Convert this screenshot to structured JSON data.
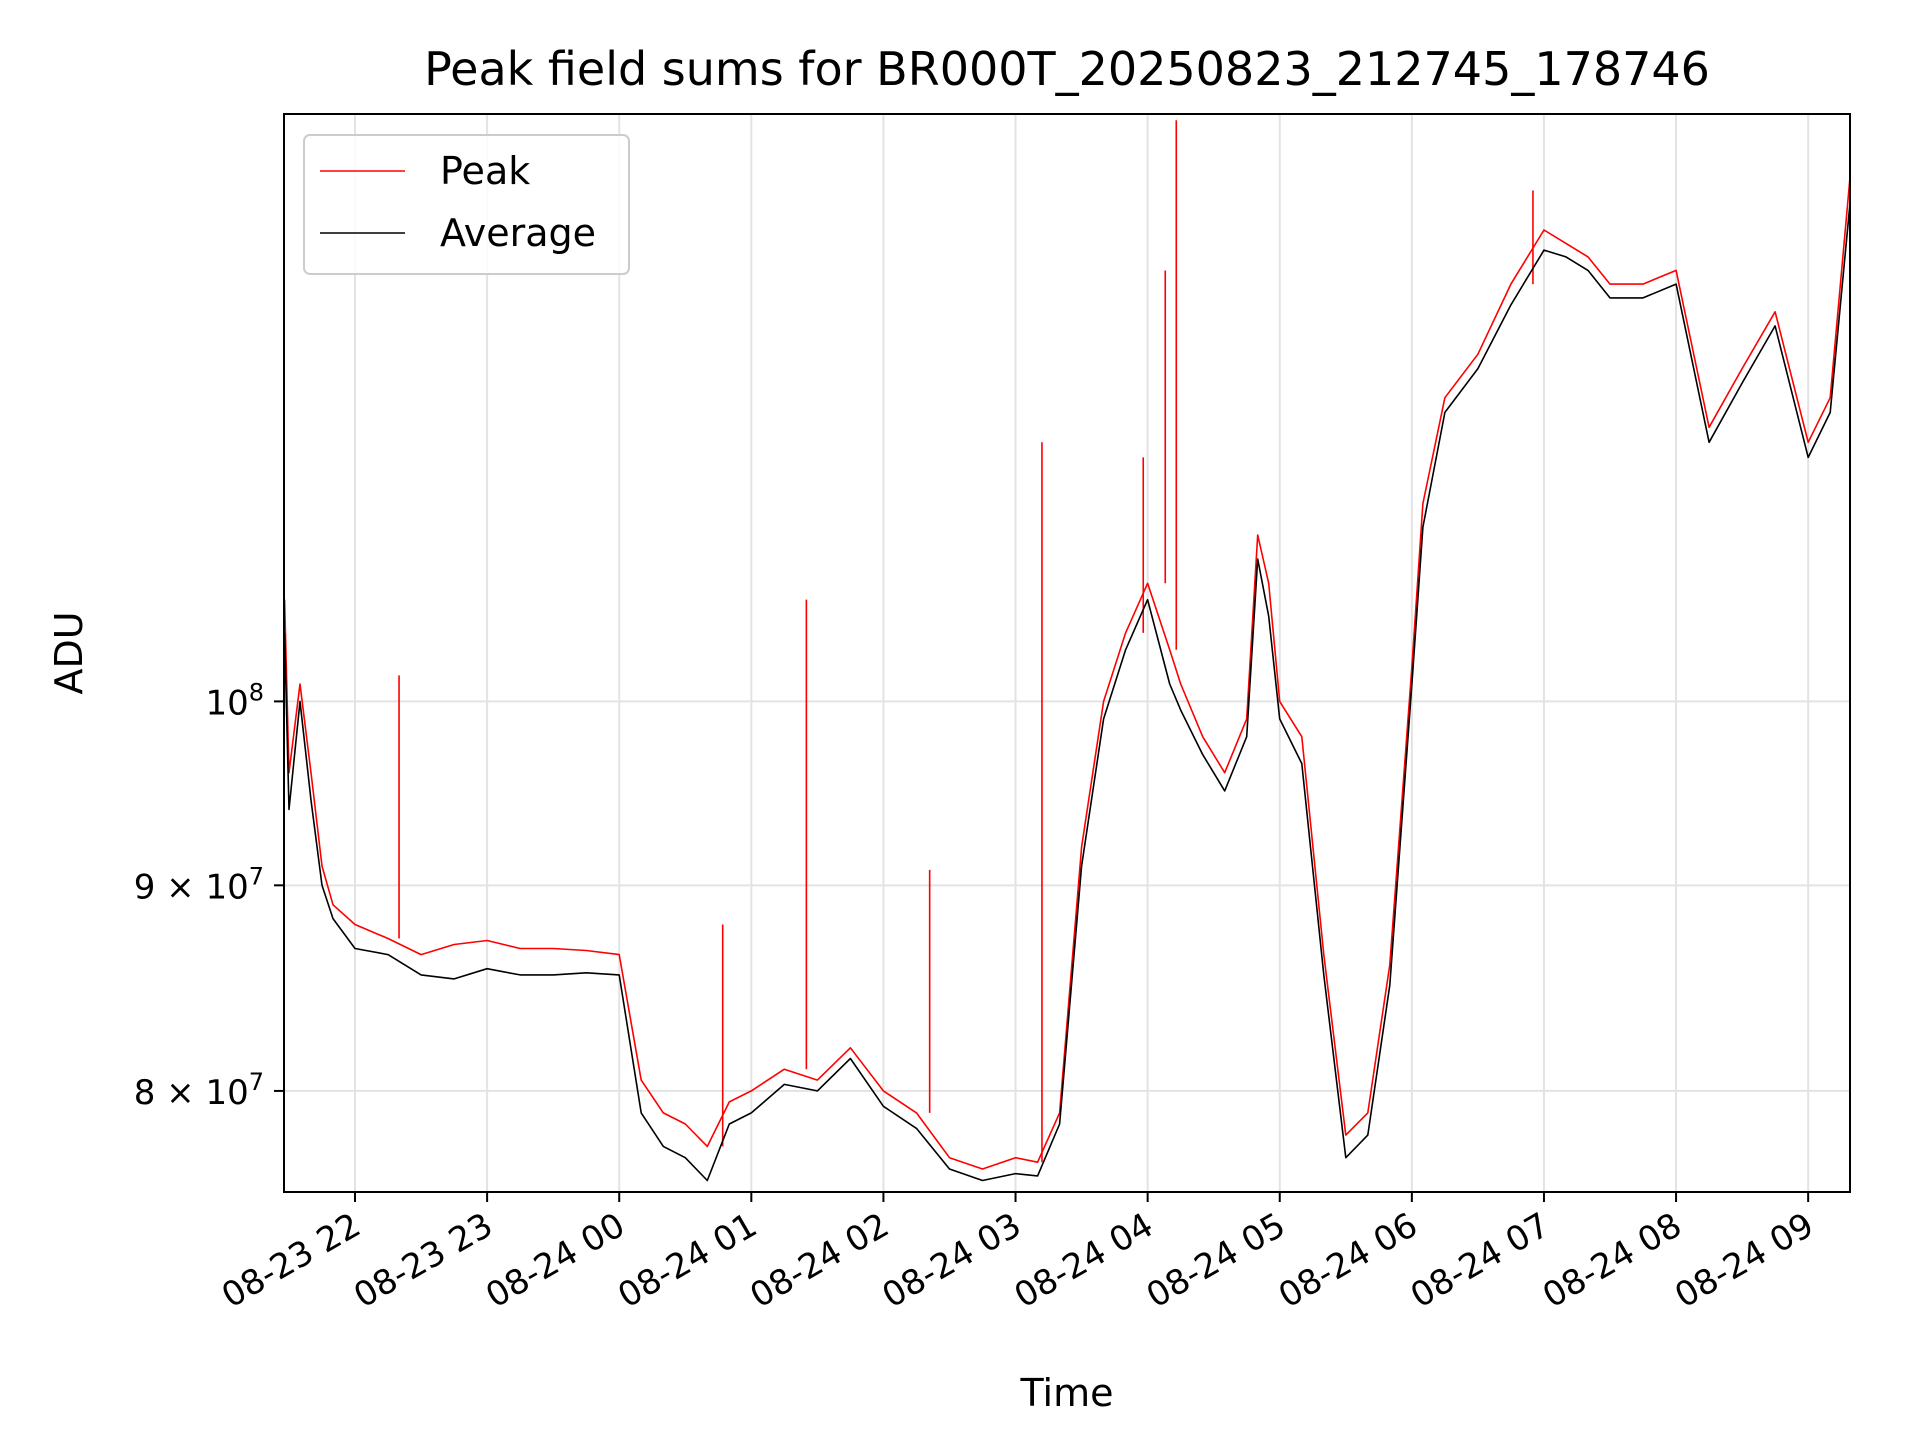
{
  "chart_data": {
    "type": "line",
    "title": "Peak field sums for BR000T_20250823_212745_178746",
    "xlabel": "Time",
    "ylabel": "ADU",
    "yscale": "log",
    "xlim": [
      "2025-08-23 21:27:45",
      "2025-08-24 09:19:00"
    ],
    "ylim": [
      75500000,
      140000000
    ],
    "grid": true,
    "legend_position": "upper left",
    "x_ticks": [
      {
        "label": "08-23 22",
        "value": "2025-08-23 22:00"
      },
      {
        "label": "08-23 23",
        "value": "2025-08-23 23:00"
      },
      {
        "label": "08-24 00",
        "value": "2025-08-24 00:00"
      },
      {
        "label": "08-24 01",
        "value": "2025-08-24 01:00"
      },
      {
        "label": "08-24 02",
        "value": "2025-08-24 02:00"
      },
      {
        "label": "08-24 03",
        "value": "2025-08-24 03:00"
      },
      {
        "label": "08-24 04",
        "value": "2025-08-24 04:00"
      },
      {
        "label": "08-24 05",
        "value": "2025-08-24 05:00"
      },
      {
        "label": "08-24 06",
        "value": "2025-08-24 06:00"
      },
      {
        "label": "08-24 07",
        "value": "2025-08-24 07:00"
      },
      {
        "label": "08-24 08",
        "value": "2025-08-24 08:00"
      },
      {
        "label": "08-24 09",
        "value": "2025-08-24 09:00"
      }
    ],
    "y_ticks": [
      {
        "base": "8",
        "exp": "7",
        "value": 80000000
      },
      {
        "base": "9",
        "exp": "7",
        "value": 90000000
      },
      {
        "base": "",
        "exp": "8",
        "value": 100000000
      }
    ],
    "series": [
      {
        "name": "Peak",
        "color": "#ff0000",
        "x": [
          "2025-08-23 21:28",
          "2025-08-23 21:30",
          "2025-08-23 21:35",
          "2025-08-23 21:40",
          "2025-08-23 21:45",
          "2025-08-23 21:50",
          "2025-08-23 22:00",
          "2025-08-23 22:15",
          "2025-08-23 22:30",
          "2025-08-23 22:45",
          "2025-08-23 23:00",
          "2025-08-23 23:15",
          "2025-08-23 23:30",
          "2025-08-23 23:45",
          "2025-08-24 00:00",
          "2025-08-24 00:10",
          "2025-08-24 00:20",
          "2025-08-24 00:30",
          "2025-08-24 00:40",
          "2025-08-24 00:50",
          "2025-08-24 01:00",
          "2025-08-24 01:15",
          "2025-08-24 01:30",
          "2025-08-24 01:45",
          "2025-08-24 02:00",
          "2025-08-24 02:15",
          "2025-08-24 02:30",
          "2025-08-24 02:45",
          "2025-08-24 03:00",
          "2025-08-24 03:10",
          "2025-08-24 03:20",
          "2025-08-24 03:30",
          "2025-08-24 03:40",
          "2025-08-24 03:50",
          "2025-08-24 04:00",
          "2025-08-24 04:10",
          "2025-08-24 04:15",
          "2025-08-24 04:25",
          "2025-08-24 04:35",
          "2025-08-24 04:45",
          "2025-08-24 04:50",
          "2025-08-24 04:55",
          "2025-08-24 05:00",
          "2025-08-24 05:10",
          "2025-08-24 05:20",
          "2025-08-24 05:30",
          "2025-08-24 05:40",
          "2025-08-24 05:50",
          "2025-08-24 06:00",
          "2025-08-24 06:05",
          "2025-08-24 06:15",
          "2025-08-24 06:30",
          "2025-08-24 06:45",
          "2025-08-24 07:00",
          "2025-08-24 07:10",
          "2025-08-24 07:20",
          "2025-08-24 07:30",
          "2025-08-24 07:45",
          "2025-08-24 08:00",
          "2025-08-24 08:15",
          "2025-08-24 08:30",
          "2025-08-24 08:45",
          "2025-08-24 09:00",
          "2025-08-24 09:10",
          "2025-08-24 09:19"
        ],
        "y": [
          106000000,
          96000000,
          101000000,
          96000000,
          91000000,
          89000000,
          88000000,
          87300000,
          86500000,
          87000000,
          87200000,
          86800000,
          86800000,
          86700000,
          86500000,
          80500000,
          79000000,
          78500000,
          77500000,
          79500000,
          80000000,
          81000000,
          80500000,
          82000000,
          80000000,
          79000000,
          77000000,
          76500000,
          77000000,
          76800000,
          79000000,
          92000000,
          100000000,
          104000000,
          107000000,
          103000000,
          101000000,
          98000000,
          96000000,
          99000000,
          110000000,
          107000000,
          100000000,
          98000000,
          86500000,
          78000000,
          79000000,
          86000000,
          102000000,
          112000000,
          119000000,
          122000000,
          127000000,
          131000000,
          130000000,
          129000000,
          127000000,
          127000000,
          128000000,
          117000000,
          121000000,
          125000000,
          116000000,
          119000000,
          135000000
        ],
        "spikes": [
          {
            "x": "2025-08-23 22:20",
            "y": 101500000
          },
          {
            "x": "2025-08-24 00:47",
            "y": 88000000
          },
          {
            "x": "2025-08-24 01:25",
            "y": 106000000
          },
          {
            "x": "2025-08-24 02:21",
            "y": 90800000
          },
          {
            "x": "2025-08-24 03:12",
            "y": 116000000
          },
          {
            "x": "2025-08-24 03:58",
            "y": 115000000
          },
          {
            "x": "2025-08-24 04:08",
            "y": 128000000
          },
          {
            "x": "2025-08-24 04:13",
            "y": 139500000
          },
          {
            "x": "2025-08-24 06:55",
            "y": 134000000
          }
        ]
      },
      {
        "name": "Average",
        "color": "#000000",
        "x": [
          "2025-08-23 21:28",
          "2025-08-23 21:30",
          "2025-08-23 21:35",
          "2025-08-23 21:40",
          "2025-08-23 21:45",
          "2025-08-23 21:50",
          "2025-08-23 22:00",
          "2025-08-23 22:15",
          "2025-08-23 22:30",
          "2025-08-23 22:45",
          "2025-08-23 23:00",
          "2025-08-23 23:15",
          "2025-08-23 23:30",
          "2025-08-23 23:45",
          "2025-08-24 00:00",
          "2025-08-24 00:10",
          "2025-08-24 00:20",
          "2025-08-24 00:30",
          "2025-08-24 00:40",
          "2025-08-24 00:50",
          "2025-08-24 01:00",
          "2025-08-24 01:15",
          "2025-08-24 01:30",
          "2025-08-24 01:45",
          "2025-08-24 02:00",
          "2025-08-24 02:15",
          "2025-08-24 02:30",
          "2025-08-24 02:45",
          "2025-08-24 03:00",
          "2025-08-24 03:10",
          "2025-08-24 03:20",
          "2025-08-24 03:30",
          "2025-08-24 03:40",
          "2025-08-24 03:50",
          "2025-08-24 04:00",
          "2025-08-24 04:10",
          "2025-08-24 04:15",
          "2025-08-24 04:25",
          "2025-08-24 04:35",
          "2025-08-24 04:45",
          "2025-08-24 04:50",
          "2025-08-24 04:55",
          "2025-08-24 05:00",
          "2025-08-24 05:10",
          "2025-08-24 05:20",
          "2025-08-24 05:30",
          "2025-08-24 05:40",
          "2025-08-24 05:50",
          "2025-08-24 06:00",
          "2025-08-24 06:05",
          "2025-08-24 06:15",
          "2025-08-24 06:30",
          "2025-08-24 06:45",
          "2025-08-24 07:00",
          "2025-08-24 07:10",
          "2025-08-24 07:20",
          "2025-08-24 07:30",
          "2025-08-24 07:45",
          "2025-08-24 08:00",
          "2025-08-24 08:15",
          "2025-08-24 08:30",
          "2025-08-24 08:45",
          "2025-08-24 09:00",
          "2025-08-24 09:10",
          "2025-08-24 09:19"
        ],
        "y": [
          104000000,
          94000000,
          100000000,
          94500000,
          90000000,
          88300000,
          86800000,
          86500000,
          85500000,
          85300000,
          85800000,
          85500000,
          85500000,
          85600000,
          85500000,
          79000000,
          77500000,
          77000000,
          76000000,
          78500000,
          79000000,
          80300000,
          80000000,
          81500000,
          79300000,
          78300000,
          76500000,
          76000000,
          76300000,
          76200000,
          78500000,
          91000000,
          99000000,
          103000000,
          106000000,
          101000000,
          99500000,
          97000000,
          95000000,
          98000000,
          108500000,
          105000000,
          99000000,
          96500000,
          85500000,
          77000000,
          78000000,
          85000000,
          101000000,
          110500000,
          118000000,
          121000000,
          125500000,
          129500000,
          129000000,
          128000000,
          126000000,
          126000000,
          127000000,
          116000000,
          120000000,
          124000000,
          115000000,
          118000000,
          133000000
        ]
      }
    ]
  }
}
